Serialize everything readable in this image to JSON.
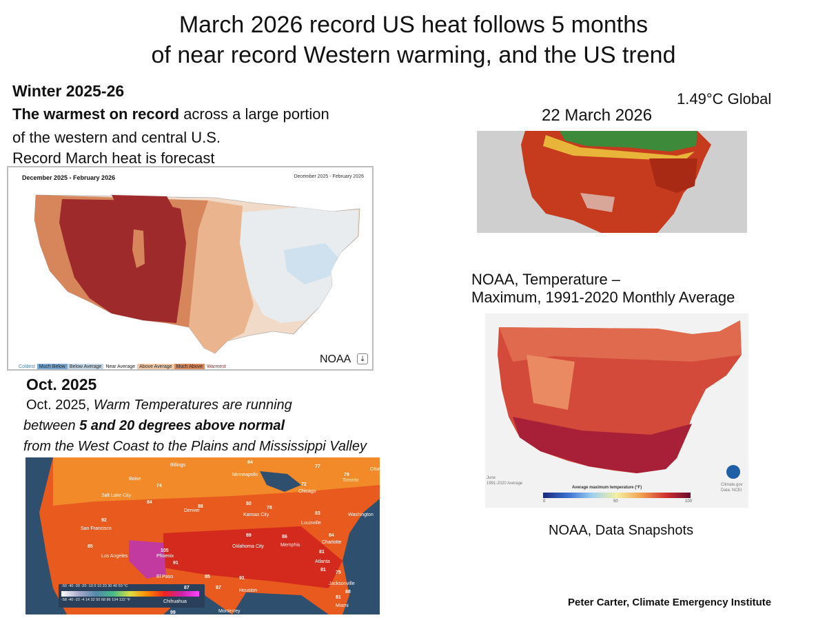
{
  "title": {
    "line1": "March 2026 record US heat follows 5 months",
    "line2": "of near record Western warming, and the US trend"
  },
  "winter": {
    "heading": "Winter 2025-26",
    "line1_bold": "The warmest on record",
    "line1_rest": " across a large portion",
    "line2": "of the western and central U.S.",
    "line3": "Record March heat is forecast"
  },
  "winter_map": {
    "title": "December 2025 - February 2026",
    "title_right": "December 2025 - February 2026",
    "legend": [
      "Coldest",
      "Much Below",
      "Below Average",
      "Near Average",
      "Above Average",
      "Much Above",
      "Warmest"
    ],
    "credit": "NOAA",
    "download_icon": "download-icon"
  },
  "march": {
    "global_label": "1.49°C Global",
    "date_label": "22 March 2026"
  },
  "normals": {
    "caption_line1": "NOAA, Temperature –",
    "caption_line2": "Maximum, 1991-2020 Monthly Average",
    "month": "June",
    "period": "1991-2020 Average",
    "legend_title": "Average maximum temperature (°F)",
    "ticks": [
      "0",
      "50",
      "100"
    ],
    "source1": "Climate.gov",
    "source2": "Data: NCEI",
    "credit": "NOAA, Data Snapshots"
  },
  "october": {
    "heading": "Oct. 2025",
    "line1_a": "Oct. 2025, ",
    "line1_b": "Warm  Temperatures are running",
    "line2_a": "between ",
    "line2_b": "5 and 20 degrees above normal",
    "line3": "from the West Coast to the Plains and Mississippi Valley",
    "cities": [
      {
        "name": "Billings"
      },
      {
        "name": "Minneapolis"
      },
      {
        "name": "Toronto"
      },
      {
        "name": "Ottawa"
      },
      {
        "name": "Boise"
      },
      {
        "name": "Salt Lake City"
      },
      {
        "name": "Chicago"
      },
      {
        "name": "Denver"
      },
      {
        "name": "Kansas City"
      },
      {
        "name": "Louisville"
      },
      {
        "name": "Washington"
      },
      {
        "name": "San Francisco"
      },
      {
        "name": "Los Angeles"
      },
      {
        "name": "Phoenix"
      },
      {
        "name": "Oklahoma City"
      },
      {
        "name": "Memphis"
      },
      {
        "name": "Charlotte"
      },
      {
        "name": "Atlanta"
      },
      {
        "name": "El Paso"
      },
      {
        "name": "Houston"
      },
      {
        "name": "Chihuahua"
      },
      {
        "name": "Jacksonville"
      },
      {
        "name": "Miami"
      },
      {
        "name": "Monterrey"
      }
    ],
    "temps": [
      "64",
      "77",
      "79",
      "72",
      "74",
      "84",
      "80",
      "78",
      "83",
      "92",
      "88",
      "85",
      "89",
      "86",
      "81",
      "84",
      "81",
      "105",
      "91",
      "85",
      "87",
      "91",
      "75",
      "87",
      "81",
      "88",
      "99"
    ],
    "scale_c": [
      "-50",
      "-40",
      "-30",
      "-20",
      "-10",
      "0",
      "10",
      "20",
      "30",
      "40",
      "50",
      "°C"
    ],
    "scale_f": [
      "-58",
      "-40",
      "-22",
      "-4",
      "14",
      "32",
      "50",
      "68",
      "86",
      "104",
      "122",
      "°F"
    ]
  },
  "footer": "Peter Carter, Climate Emergency Institute"
}
